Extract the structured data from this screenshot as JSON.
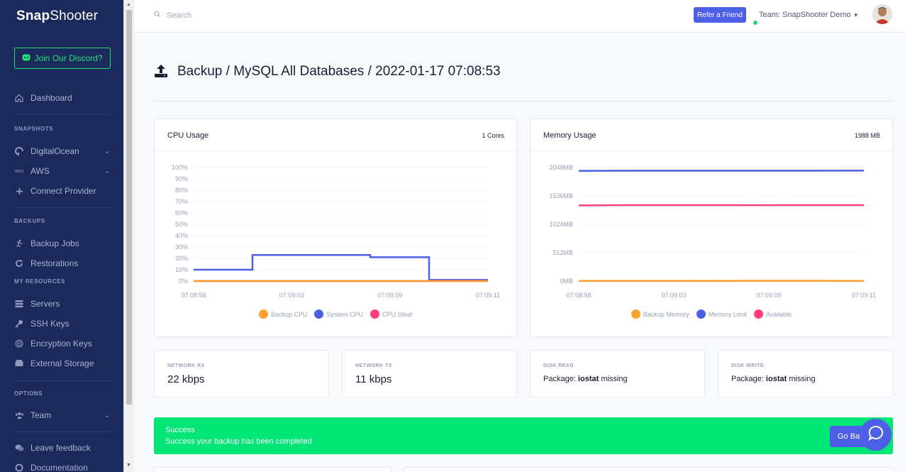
{
  "sidebar": {
    "logo_prefix": "Snap",
    "logo_suffix": "Shooter",
    "discord_label": "Join Our Discord?",
    "dashboard": "Dashboard",
    "sections": {
      "snapshots": "SNAPSHOTS",
      "backups": "BACKUPS",
      "my_resources": "MY RESOURCES",
      "options": "OPTIONS"
    },
    "items": {
      "digitalocean": "DigitalOcean",
      "aws": "AWS",
      "aws_logo": "aws",
      "connect_provider": "Connect Provider",
      "backup_jobs": "Backup Jobs",
      "restorations": "Restorations",
      "servers": "Servers",
      "ssh_keys": "SSH Keys",
      "encryption_keys": "Encryption Keys",
      "external_storage": "External Storage",
      "team": "Team",
      "leave_feedback": "Leave feedback",
      "documentation": "Documentation"
    }
  },
  "topbar": {
    "search_placeholder": "Search",
    "refer_label": "Refer a Friend",
    "team_label": "Team: SnapShooter Demo"
  },
  "page": {
    "title": "Backup / MySQL All Databases / 2022-01-17 07:08:53"
  },
  "cpu_card": {
    "title": "CPU Usage",
    "meta": "1 Cores"
  },
  "memory_card": {
    "title": "Memory Usage",
    "meta": "1988 MB"
  },
  "stats": {
    "network_rx": {
      "label": "NETWORK RX",
      "value": "22 kbps"
    },
    "network_tx": {
      "label": "NETWORK TX",
      "value": "11 kbps"
    },
    "disk_read": {
      "label": "DISK READ",
      "prefix": "Package: ",
      "pkg": "iostat",
      "suffix": " missing"
    },
    "disk_write": {
      "label": "DISK WRITE",
      "prefix": "Package: ",
      "pkg": "iostat",
      "suffix": " missing"
    }
  },
  "success": {
    "title": "Success",
    "message": "Success your backup has been completed",
    "button": "Go Back"
  },
  "colors": {
    "backup": "#ff9f2e",
    "system": "#4c5fe6",
    "steal": "#ff3d7f"
  },
  "chart_data": [
    {
      "type": "line",
      "title": "CPU Usage",
      "x": [
        "07:08:58",
        "07:09:01",
        "07:09:03",
        "07:09:06",
        "07:09:09",
        "07:09:11"
      ],
      "xticks": [
        "07:08:58",
        "07:09:03",
        "07:09:09",
        "07:09:11"
      ],
      "yticks": [
        "100%",
        "90%",
        "80%",
        "70%",
        "60%",
        "50%",
        "40%",
        "30%",
        "20%",
        "10%",
        "0%"
      ],
      "ylim": [
        0,
        100
      ],
      "step": true,
      "legend": [
        "Backup CPU",
        "System CPU",
        "CPU Steal"
      ],
      "series": [
        {
          "name": "Backup CPU",
          "values": [
            0,
            0,
            0,
            0,
            0,
            0
          ]
        },
        {
          "name": "System CPU",
          "values": [
            10,
            23,
            23,
            21,
            1,
            1
          ]
        },
        {
          "name": "CPU Steal",
          "values": [
            0,
            0,
            0,
            0,
            0,
            0
          ]
        }
      ]
    },
    {
      "type": "line",
      "title": "Memory Usage",
      "x": [
        "07:08:58",
        "07:09:01",
        "07:09:03",
        "07:09:06",
        "07:09:09",
        "07:09:11"
      ],
      "xticks": [
        "07:08:58",
        "07:09:03",
        "07:09:09",
        "07:09:11"
      ],
      "yticks": [
        "2048MB",
        "1536MB",
        "1024MB",
        "512MB",
        "0MB"
      ],
      "ylim": [
        0,
        2048
      ],
      "step": false,
      "legend": [
        "Backup Memory",
        "Memory Limit",
        "Available"
      ],
      "series": [
        {
          "name": "Backup Memory",
          "values": [
            3,
            3,
            3,
            5,
            5,
            3
          ]
        },
        {
          "name": "Memory Limit",
          "values": [
            1988,
            1990,
            1990,
            1990,
            1990,
            1992
          ]
        },
        {
          "name": "Available",
          "values": [
            1365,
            1370,
            1370,
            1368,
            1370,
            1370
          ]
        }
      ]
    }
  ]
}
